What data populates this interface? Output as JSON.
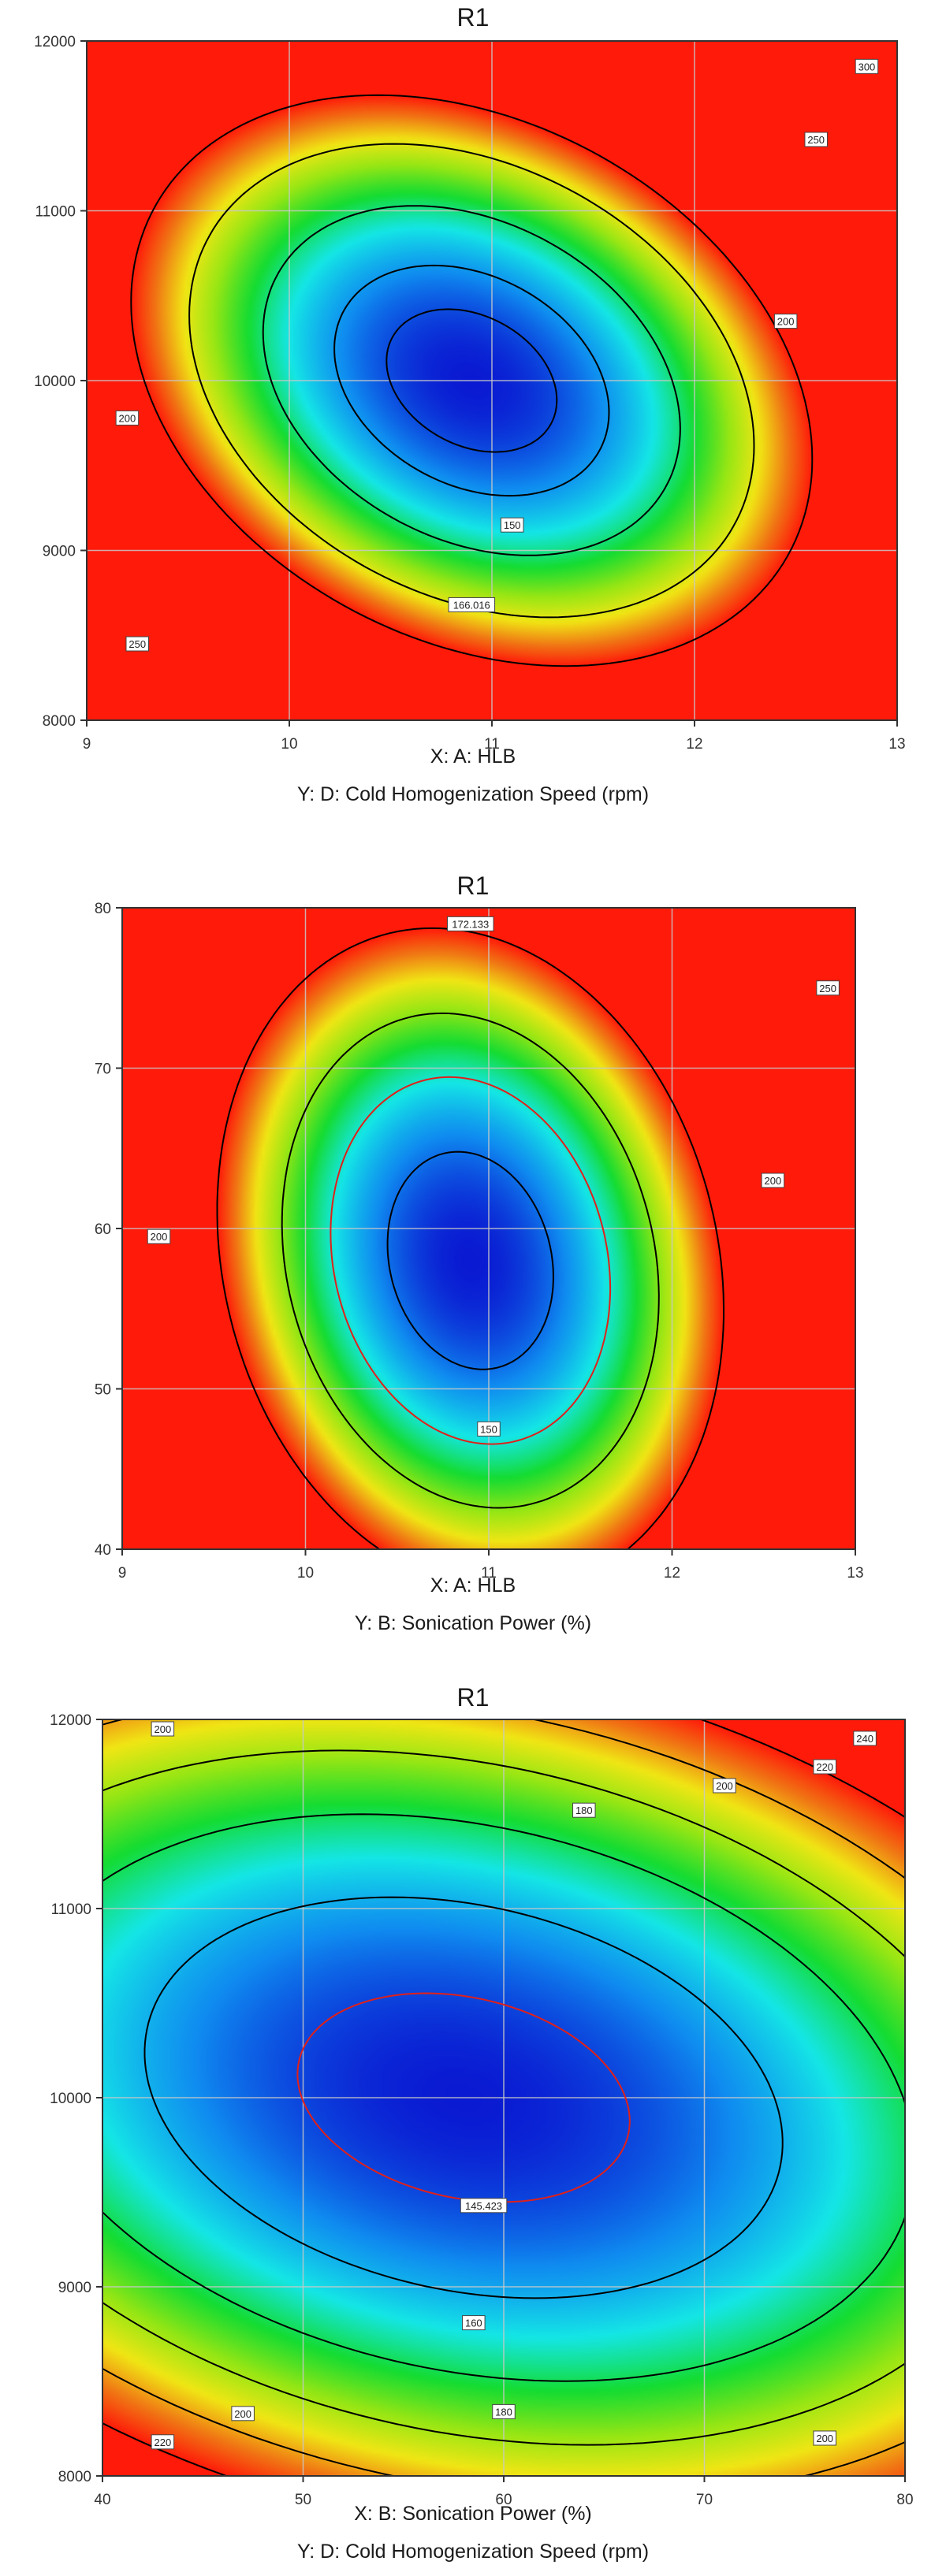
{
  "chart_data": [
    {
      "type": "heatmap",
      "title": "R1",
      "xlabel": "X: A: HLB",
      "ylabel": "Y: D: Cold Homogenization Speed (rpm)",
      "xlim": [
        9,
        13
      ],
      "ylim": [
        8000,
        12000
      ],
      "x_ticks": [
        "9",
        "10",
        "11",
        "12",
        "13"
      ],
      "y_ticks": [
        "8000",
        "9000",
        "10000",
        "11000",
        "12000"
      ],
      "grid": true,
      "colormap": [
        "#0a1ad2",
        "#0f8cf0",
        "#14e6e6",
        "#14dc32",
        "#96e614",
        "#f0e614",
        "#f07814",
        "#ff1a0a"
      ],
      "model": {
        "center": [
          10.9,
          10000
        ],
        "span": [
          2.0,
          2000
        ],
        "cross": 0.55,
        "min": 140,
        "scale": 245
      },
      "contours": [
        {
          "level": 150,
          "label": "150",
          "color": "#000000",
          "label_at": [
            11.1,
            9150
          ]
        },
        {
          "level": 166.016,
          "label": "166.016",
          "color": "#000000",
          "label_at": [
            10.9,
            8680
          ]
        },
        {
          "level": 200,
          "label": "200",
          "color": "#000000",
          "label_at": [
            12.45,
            10350
          ]
        },
        {
          "level": 250,
          "label": "250",
          "color": "#000000",
          "label_at": [
            12.6,
            11420
          ]
        },
        {
          "level": 300,
          "label": "300",
          "color": "#000000",
          "label_at": [
            12.85,
            11850
          ]
        }
      ],
      "extra_labels": [
        {
          "label": "200",
          "at": [
            9.2,
            9780
          ]
        },
        {
          "label": "250",
          "at": [
            9.25,
            8450
          ]
        }
      ]
    },
    {
      "type": "heatmap",
      "title": "R1",
      "xlabel": "X: A: HLB",
      "ylabel": "Y: B: Sonication Power (%)",
      "xlim": [
        9,
        13
      ],
      "ylim": [
        40,
        80
      ],
      "x_ticks": [
        "9",
        "10",
        "11",
        "12",
        "13"
      ],
      "y_ticks": [
        "40",
        "50",
        "60",
        "70",
        "80"
      ],
      "grid": true,
      "colormap": [
        "#0a1ad2",
        "#0f8cf0",
        "#14e6e6",
        "#14dc32",
        "#96e614",
        "#f0e614",
        "#f07814",
        "#ff1a0a"
      ],
      "model": {
        "center": [
          10.9,
          58
        ],
        "span": [
          2.0,
          30
        ],
        "cross": 0.3,
        "min": 138,
        "scale": 240
      },
      "contours": [
        {
          "level": 150,
          "label": "150",
          "color": "#000000",
          "label_at": [
            11.0,
            47.5
          ]
        },
        {
          "level": 172.133,
          "label": "172.133",
          "color": "#e0201a",
          "label_at": [
            10.9,
            79.0
          ]
        },
        {
          "level": 200,
          "label": "200",
          "color": "#000000",
          "label_at": [
            12.55,
            63
          ]
        },
        {
          "level": 250,
          "label": "250",
          "color": "#000000",
          "label_at": [
            12.85,
            75
          ]
        }
      ],
      "extra_labels": [
        {
          "label": "200",
          "at": [
            9.2,
            59.5
          ]
        }
      ]
    },
    {
      "type": "heatmap",
      "title": "R1",
      "xlabel": "X: B: Sonication Power (%)",
      "ylabel": "Y: D: Cold Homogenization Speed (rpm)",
      "xlim": [
        40,
        80
      ],
      "ylim": [
        8000,
        12000
      ],
      "x_ticks": [
        "40",
        "50",
        "60",
        "70",
        "80"
      ],
      "y_ticks": [
        "8000",
        "9000",
        "10000",
        "11000",
        "12000"
      ],
      "grid": true,
      "colormap": [
        "#0a1ad2",
        "#0f8cf0",
        "#14e6e6",
        "#14dc32",
        "#96e614",
        "#f0e614",
        "#f07814",
        "#ff1a0a"
      ],
      "model": {
        "center": [
          58,
          10000
        ],
        "span": [
          30,
          2000
        ],
        "cross": 0.45,
        "min": 140,
        "scale": 75
      },
      "contours": [
        {
          "level": 145.423,
          "label": "145.423",
          "color": "#e0201a",
          "label_at": [
            59,
            9430
          ]
        },
        {
          "level": 160,
          "label": "160",
          "color": "#000000",
          "label_at": [
            58.5,
            8810
          ]
        },
        {
          "level": 180,
          "label": "180",
          "color": "#000000",
          "label_at": [
            60,
            8340
          ]
        },
        {
          "level": 200,
          "label": "200",
          "color": "#000000",
          "label_at": [
            76,
            8200
          ]
        },
        {
          "level": 220,
          "label": "220",
          "color": "#000000",
          "label_at": [
            76,
            11750
          ]
        },
        {
          "level": 240,
          "label": "240",
          "color": "#000000",
          "label_at": [
            78,
            11900
          ]
        }
      ],
      "extra_labels": [
        {
          "label": "180",
          "at": [
            64,
            11520
          ]
        },
        {
          "label": "200",
          "at": [
            71,
            11650
          ]
        },
        {
          "label": "200",
          "at": [
            43,
            11950
          ]
        },
        {
          "label": "200",
          "at": [
            47,
            8330
          ]
        },
        {
          "label": "220",
          "at": [
            43,
            8180
          ]
        }
      ]
    }
  ]
}
